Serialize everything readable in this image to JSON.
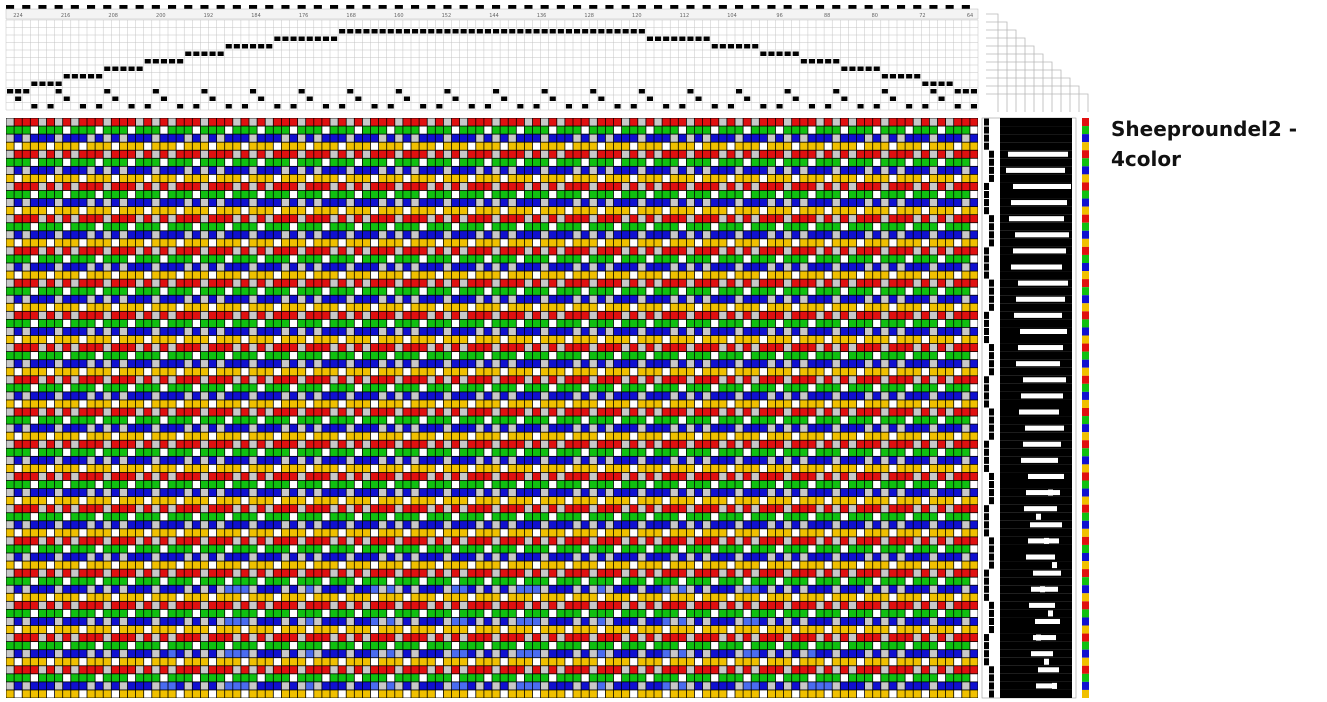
{
  "title": "Sheeproundel2 - 4color",
  "draft": {
    "threading_ticks": [
      "224",
      "216",
      "208",
      "200",
      "192",
      "184",
      "176",
      "168",
      "160",
      "152",
      "144",
      "136",
      "128",
      "120",
      "112",
      "104",
      "96",
      "88",
      "80",
      "72",
      "64"
    ],
    "colors": {
      "red": "#e01010",
      "green": "#10c010",
      "blue": "#1010d0",
      "yellow": "#f0c000",
      "black": "#000000",
      "white": "#ffffff",
      "light_gray": "#c8c8c8",
      "light_blue": "#4a6cf0",
      "grid_line": "#9a9a9a"
    },
    "weft_color_sequence": [
      "red",
      "green",
      "blue",
      "yellow"
    ]
  }
}
